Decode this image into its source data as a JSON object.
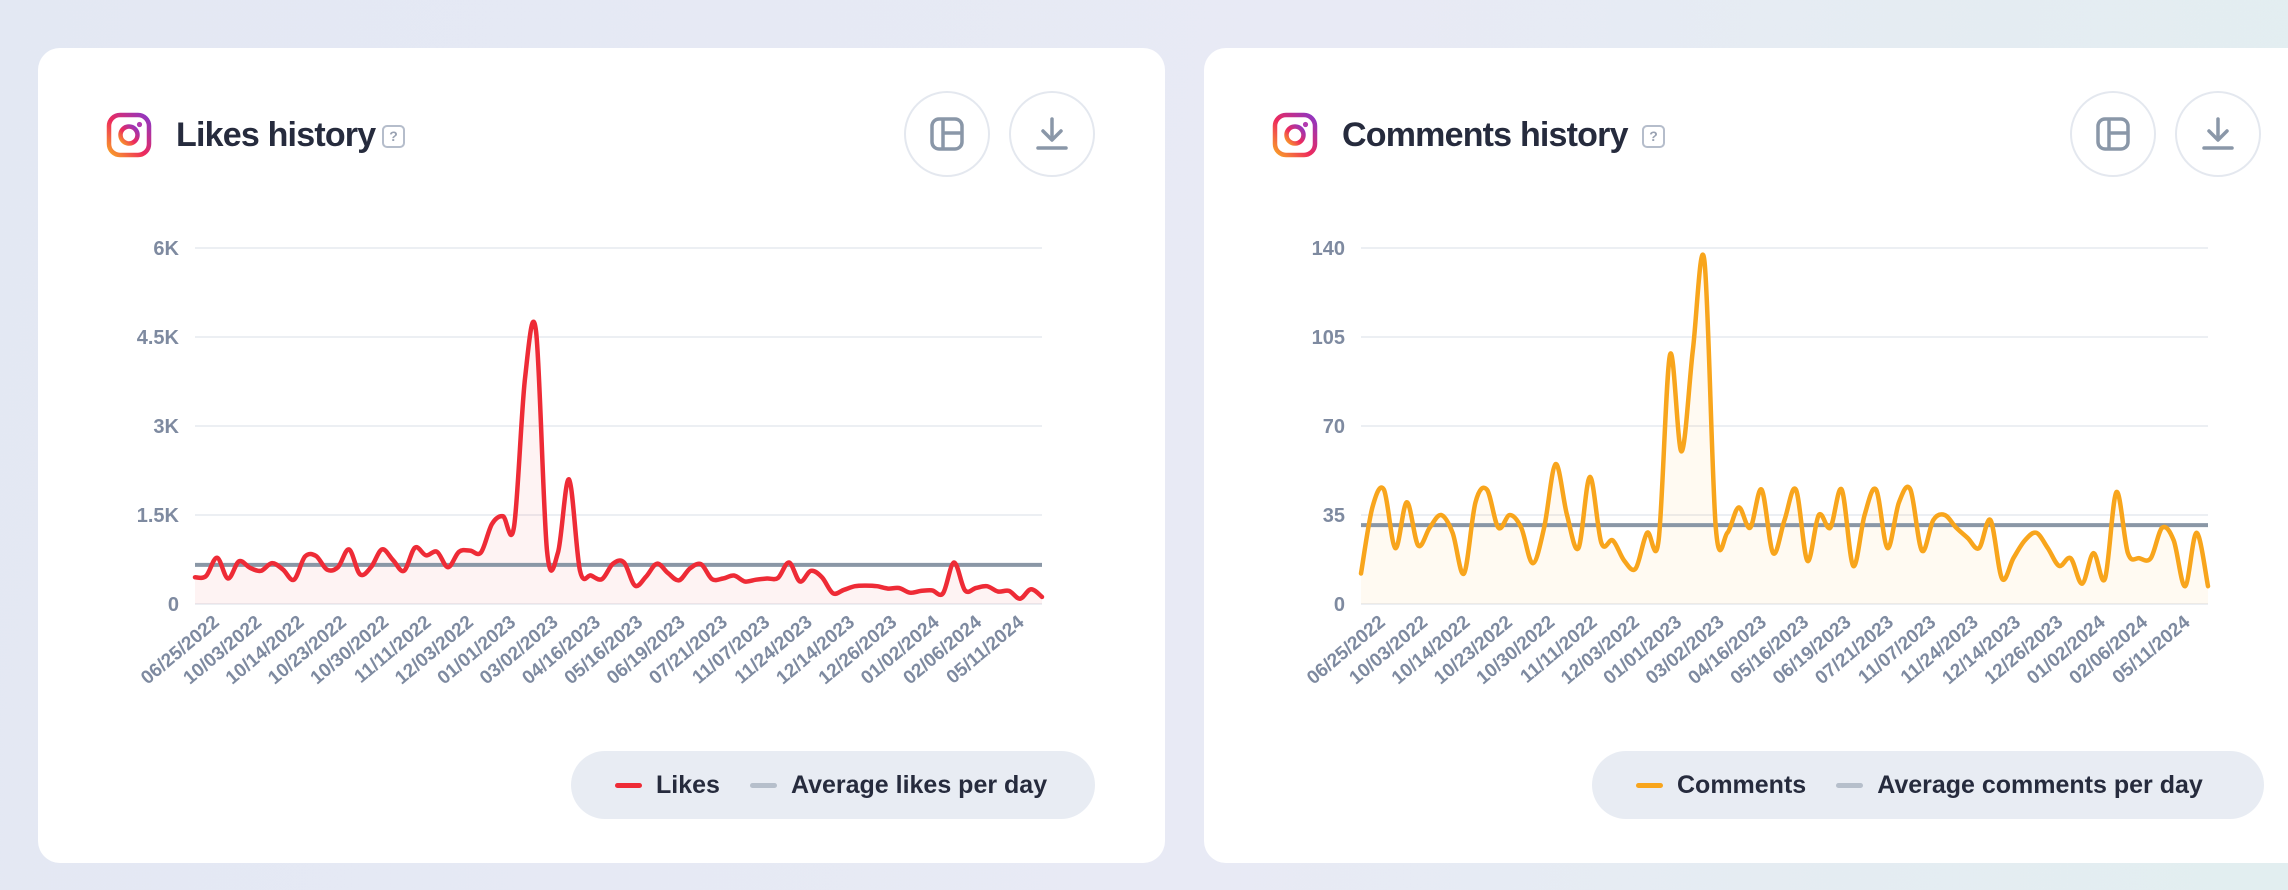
{
  "colors": {
    "likes": "#ee2b36",
    "comments": "#f8a51c",
    "average": "#8a97a6",
    "grid": "#eceff3",
    "tick": "#7e8aa0"
  },
  "icons": {
    "instagram": "instagram-icon",
    "help": "question-mark-icon",
    "layout": "layout-icon",
    "download": "download-icon"
  },
  "cards": [
    {
      "title": "Likes history",
      "help_label": "?",
      "legend": [
        "Likes",
        "Average likes per day"
      ],
      "chart_data": {
        "type": "line",
        "title": "Likes history",
        "xlabel": "",
        "ylabel": "",
        "ylim": [
          0,
          6000
        ],
        "yticks": [
          "0",
          "1.5K",
          "3K",
          "4.5K",
          "6K"
        ],
        "ytick_values": [
          0,
          1500,
          3000,
          4500,
          6000
        ],
        "x_tick_labels": [
          "06/25/2022",
          "10/03/2022",
          "10/14/2022",
          "10/23/2022",
          "10/30/2022",
          "11/11/2022",
          "12/03/2022",
          "01/01/2023",
          "03/02/2023",
          "04/16/2023",
          "05/16/2023",
          "06/19/2023",
          "07/21/2023",
          "11/07/2023",
          "11/24/2023",
          "12/14/2023",
          "12/26/2023",
          "01/02/2024",
          "02/06/2024",
          "05/11/2024"
        ],
        "grid": true,
        "legend_position": "bottom-right",
        "series": [
          {
            "name": "Likes",
            "values": [
              450,
              470,
              780,
              430,
              720,
              610,
              560,
              690,
              580,
              410,
              800,
              810,
              580,
              620,
              920,
              500,
              620,
              920,
              740,
              560,
              950,
              820,
              880,
              620,
              880,
              900,
              870,
              1350,
              1480,
              1300,
              3800,
              4600,
              900,
              870,
              2100,
              560,
              480,
              420,
              680,
              700,
              310,
              460,
              680,
              520,
              400,
              600,
              670,
              420,
              430,
              480,
              380,
              410,
              430,
              440,
              700,
              380,
              560,
              450,
              180,
              240,
              300,
              310,
              300,
              260,
              270,
              190,
              220,
              230,
              180,
              700,
              230,
              270,
              300,
              210,
              220,
              90,
              250,
              120
            ]
          },
          {
            "name": "Average likes per day",
            "values": [
              660,
              660
            ]
          }
        ]
      }
    },
    {
      "title": "Comments history",
      "help_label": "?",
      "legend": [
        "Comments",
        "Average comments per day"
      ],
      "chart_data": {
        "type": "line",
        "title": "Comments history",
        "xlabel": "",
        "ylabel": "",
        "ylim": [
          0,
          140
        ],
        "yticks": [
          "0",
          "35",
          "70",
          "105",
          "140"
        ],
        "ytick_values": [
          0,
          35,
          70,
          105,
          140
        ],
        "x_tick_labels": [
          "06/25/2022",
          "10/03/2022",
          "10/14/2022",
          "10/23/2022",
          "10/30/2022",
          "11/11/2022",
          "12/03/2022",
          "01/01/2023",
          "03/02/2023",
          "04/16/2023",
          "05/16/2023",
          "06/19/2023",
          "07/21/2023",
          "11/07/2023",
          "11/24/2023",
          "12/14/2023",
          "12/26/2023",
          "01/02/2024",
          "02/06/2024",
          "05/11/2024"
        ],
        "grid": true,
        "legend_position": "bottom-right",
        "series": [
          {
            "name": "Comments",
            "values": [
              12,
              38,
              45,
              22,
              40,
              23,
              30,
              35,
              28,
              12,
              40,
              45,
              30,
              35,
              30,
              16,
              30,
              55,
              35,
              22,
              50,
              24,
              25,
              17,
              14,
              28,
              25,
              98,
              60,
              100,
              135,
              30,
              28,
              38,
              30,
              45,
              20,
              33,
              45,
              17,
              35,
              30,
              45,
              15,
              35,
              45,
              22,
              40,
              45,
              21,
              33,
              35,
              30,
              26,
              22,
              33,
              10,
              18,
              25,
              28,
              22,
              15,
              18,
              8,
              20,
              10,
              44,
              20,
              18,
              18,
              30,
              25,
              7,
              28,
              7
            ]
          },
          {
            "name": "Average comments per day",
            "values": [
              31,
              31
            ]
          }
        ]
      }
    }
  ]
}
